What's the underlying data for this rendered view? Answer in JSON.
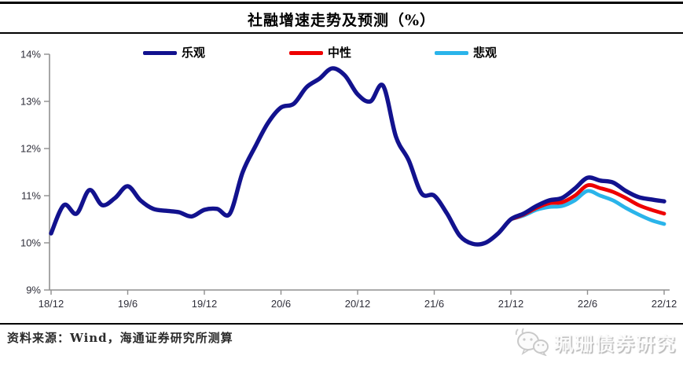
{
  "header": {
    "title": "社融增速走势及预测（%）"
  },
  "footer": {
    "source": "资料来源：Wind，海通证券研究所测算",
    "watermark": "珮珊债券研究",
    "watermark_icon": "wechat-icon"
  },
  "colors": {
    "optimistic": "#12128e",
    "neutral": "#ee0000",
    "pessimistic": "#2ab4ea",
    "axis": "#8f8f8f",
    "tick_text": "#2f2f3a",
    "rule": "#000000",
    "watermark_gray": "#c9c9c9"
  },
  "chart_data": {
    "type": "line",
    "title": "社融增速走势及预测（%）",
    "unit": "%",
    "grid": false,
    "legend_position": "top",
    "ylim": [
      9,
      14
    ],
    "y_tick_labels": [
      "9%",
      "10%",
      "11%",
      "12%",
      "13%",
      "14%"
    ],
    "x_tick_labels": [
      "18/12",
      "19/6",
      "19/12",
      "20/6",
      "20/12",
      "21/6",
      "21/12",
      "22/6",
      "22/12"
    ],
    "months_per_tick": 6,
    "total_months": 48,
    "series": [
      {
        "name": "乐观",
        "color": "#12128e",
        "start_month": 0,
        "values": [
          10.2,
          10.8,
          10.62,
          11.12,
          10.8,
          10.95,
          11.2,
          10.9,
          10.72,
          10.68,
          10.65,
          10.56,
          10.7,
          10.72,
          10.62,
          11.5,
          12.05,
          12.55,
          12.87,
          12.95,
          13.3,
          13.48,
          13.7,
          13.55,
          13.15,
          13.0,
          13.33,
          12.25,
          11.75,
          11.05,
          11.0,
          10.62,
          10.15,
          9.98,
          10.0,
          10.2,
          10.5,
          10.62,
          10.78,
          10.9,
          10.95,
          11.15,
          11.38,
          11.32,
          11.28,
          11.1,
          10.97,
          10.92,
          10.88
        ]
      },
      {
        "name": "中性",
        "color": "#ee0000",
        "start_month": 36,
        "values": [
          10.5,
          10.6,
          10.74,
          10.84,
          10.86,
          11.0,
          11.22,
          11.16,
          11.08,
          10.95,
          10.8,
          10.7,
          10.62
        ]
      },
      {
        "name": "悲观",
        "color": "#2ab4ea",
        "start_month": 36,
        "values": [
          10.5,
          10.58,
          10.7,
          10.76,
          10.78,
          10.9,
          11.1,
          11.0,
          10.9,
          10.74,
          10.6,
          10.48,
          10.4
        ]
      }
    ]
  }
}
